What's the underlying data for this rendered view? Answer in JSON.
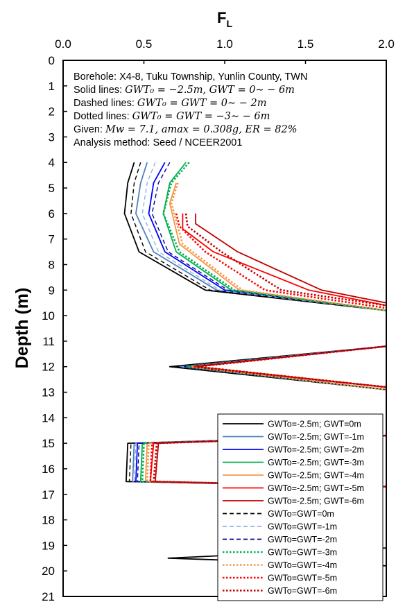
{
  "chart_data": {
    "type": "line",
    "title": "",
    "xlabel": "F",
    "xlabel_subscript": "L",
    "ylabel": "Depth (m)",
    "xlim": [
      0.0,
      2.0
    ],
    "ylim": [
      0,
      21
    ],
    "y_inverted": true,
    "x_axis_position": "top",
    "x_ticks": [
      "0.0",
      "0.5",
      "1.0",
      "1.5",
      "2.0"
    ],
    "y_ticks": [
      "0",
      "1",
      "2",
      "3",
      "4",
      "5",
      "6",
      "7",
      "8",
      "9",
      "10",
      "11",
      "12",
      "13",
      "14",
      "15",
      "16",
      "17",
      "18",
      "19",
      "20",
      "21"
    ],
    "grid": false,
    "legend_position": "bottom-right",
    "annotation_lines": [
      {
        "parts": [
          {
            "text": "Borehole: X4-8, Tuku Township, Yunlin County, TWN",
            "math": false
          }
        ]
      },
      {
        "parts": [
          {
            "text": "Solid lines: ",
            "math": false
          },
          {
            "text": "GWT₀ = −2.5m, GWT = 0∼ − 6m",
            "math": true
          }
        ]
      },
      {
        "parts": [
          {
            "text": "Dashed lines: ",
            "math": false
          },
          {
            "text": "GWT₀ = GWT = 0∼ − 2m",
            "math": true
          }
        ]
      },
      {
        "parts": [
          {
            "text": "Dotted lines: ",
            "math": false
          },
          {
            "text": "GWT₀ = GWT = −3∼ − 6m",
            "math": true
          }
        ]
      },
      {
        "parts": [
          {
            "text": "Given: ",
            "math": false
          },
          {
            "text": "Mw = 7.1, amax = 0.308g, ER = 82%",
            "math": true
          }
        ]
      },
      {
        "parts": [
          {
            "text": "Analysis method: Seed / NCEER2001",
            "math": false
          }
        ]
      }
    ],
    "series": [
      {
        "name": "GWTo=-2.5m; GWT=0m",
        "color": "#000000",
        "style": "solid",
        "x": [
          0.44,
          0.4,
          0.38,
          0.47,
          0.88,
          2.0,
          null,
          2.0,
          0.66,
          2.0,
          null,
          2.0,
          0.4,
          0.39,
          2.0,
          null,
          2.0,
          0.65,
          2.0
        ],
        "y": [
          4,
          4.8,
          6,
          7.5,
          9,
          9.8,
          null,
          11.2,
          12,
          12.9,
          null,
          14.7,
          15,
          16.5,
          16.7,
          null,
          19.1,
          19.5,
          19.8
        ]
      },
      {
        "name": "GWTo=-2.5m; GWT=-1m",
        "color": "#4F81BD",
        "style": "solid",
        "x": [
          0.52,
          0.48,
          0.45,
          0.56,
          0.95,
          2.0,
          null,
          2.0,
          0.72,
          2.0,
          null,
          2.0,
          0.44,
          0.43,
          2.0
        ],
        "y": [
          4,
          4.8,
          6,
          7.5,
          9,
          9.8,
          null,
          11.2,
          12,
          12.9,
          null,
          14.7,
          15,
          16.5,
          16.7
        ]
      },
      {
        "name": "GWTo=-2.5m; GWT=-2m",
        "color": "#0000FF",
        "style": "solid",
        "x": [
          0.63,
          0.56,
          0.53,
          0.63,
          1.0,
          2.0,
          null,
          2.0,
          0.74,
          2.0,
          null,
          2.0,
          0.46,
          0.45,
          2.0
        ],
        "y": [
          4,
          4.8,
          6,
          7.5,
          9,
          9.8,
          null,
          11.2,
          12,
          12.9,
          null,
          14.7,
          15,
          16.5,
          16.7
        ]
      },
      {
        "name": "GWTo=-2.5m; GWT=-3m",
        "color": "#00B050",
        "style": "solid",
        "x": [
          0.76,
          0.66,
          0.62,
          0.7,
          1.04,
          2.0,
          null,
          2.0,
          0.76,
          2.0,
          null,
          2.0,
          0.49,
          0.48,
          2.0
        ],
        "y": [
          4,
          4.8,
          6,
          7.5,
          9,
          9.8,
          null,
          11.2,
          12,
          12.9,
          null,
          14.7,
          15,
          16.5,
          16.7
        ]
      },
      {
        "name": "GWTo=-2.5m; GWT=-4m",
        "color": "#F79646",
        "style": "solid",
        "x": [
          0.7,
          0.66,
          0.72,
          1.09,
          2.0,
          null,
          2.0,
          0.78,
          2.0,
          null,
          2.0,
          0.52,
          0.51,
          2.0
        ],
        "y": [
          4.8,
          5.6,
          7.2,
          9,
          9.8,
          null,
          11.2,
          12,
          12.9,
          null,
          14.7,
          15,
          16.5,
          16.7
        ]
      },
      {
        "name": "GWTo=-2.5m; GWT=-5m",
        "color": "#FF0000",
        "style": "solid",
        "x": [
          0.74,
          0.74,
          0.93,
          1.52,
          2.0,
          null,
          2.0,
          0.8,
          2.0,
          null,
          2.0,
          0.56,
          0.54,
          2.0
        ],
        "y": [
          6,
          6.6,
          7.5,
          9,
          9.6,
          null,
          11.2,
          12,
          12.8,
          null,
          14.7,
          15,
          16.5,
          16.7
        ]
      },
      {
        "name": "GWTo=-2.5m; GWT=-6m",
        "color": "#C00000",
        "style": "solid",
        "x": [
          0.82,
          0.82,
          1.08,
          1.6,
          2.0,
          null,
          2.0,
          0.82,
          2.0,
          null,
          2.0,
          0.59,
          0.57,
          2.0
        ],
        "y": [
          6,
          6.4,
          7.5,
          9,
          9.5,
          null,
          11.2,
          12,
          12.8,
          null,
          14.7,
          15,
          16.5,
          16.7
        ]
      },
      {
        "name": "GWTo=GWT=0m",
        "color": "#000000",
        "style": "dashed",
        "x": [
          0.48,
          0.44,
          0.42,
          0.51,
          0.91,
          2.0,
          null,
          2.0,
          0.69,
          2.0,
          null,
          2.0,
          0.42,
          0.41,
          2.0
        ],
        "y": [
          4,
          4.8,
          6,
          7.5,
          9,
          9.8,
          null,
          11.2,
          12,
          12.9,
          null,
          14.7,
          15,
          16.5,
          16.7
        ]
      },
      {
        "name": "GWTo=GWT=-1m",
        "color": "#8DB4E2",
        "style": "dashed",
        "x": [
          0.57,
          0.52,
          0.49,
          0.59,
          0.97,
          2.0,
          null,
          2.0,
          0.73,
          2.0,
          null,
          2.0,
          0.45,
          0.44,
          2.0
        ],
        "y": [
          4,
          4.8,
          6,
          7.5,
          9,
          9.8,
          null,
          11.2,
          12,
          12.9,
          null,
          14.7,
          15,
          16.5,
          16.7
        ]
      },
      {
        "name": "GWTo=GWT=-2m",
        "color": "#00008B",
        "style": "dashed",
        "x": [
          0.66,
          0.59,
          0.55,
          0.65,
          1.02,
          2.0,
          null,
          2.0,
          0.75,
          2.0,
          null,
          2.0,
          0.47,
          0.46,
          2.0
        ],
        "y": [
          4,
          4.8,
          6,
          7.5,
          9,
          9.8,
          null,
          11.2,
          12,
          12.9,
          null,
          14.7,
          15,
          16.5,
          16.7
        ]
      },
      {
        "name": "GWTo=GWT=-3m",
        "color": "#00B050",
        "style": "dotted",
        "x": [
          0.78,
          0.67,
          0.62,
          0.72,
          1.06,
          2.0,
          null,
          2.0,
          0.77,
          2.0,
          null,
          2.0,
          0.5,
          0.49,
          2.0
        ],
        "y": [
          4,
          4.8,
          6,
          7.5,
          9,
          9.8,
          null,
          11.2,
          12,
          12.9,
          null,
          14.7,
          15,
          16.5,
          16.7
        ]
      },
      {
        "name": "GWTo=GWT=-4m",
        "color": "#F79646",
        "style": "dotted",
        "x": [
          0.71,
          0.67,
          0.74,
          1.11,
          2.0,
          null,
          2.0,
          0.79,
          2.0,
          null,
          2.0,
          0.53,
          0.52,
          2.0
        ],
        "y": [
          4.8,
          5.6,
          7.2,
          9,
          9.8,
          null,
          11.2,
          12,
          12.9,
          null,
          14.7,
          15,
          16.5,
          16.7
        ]
      },
      {
        "name": "GWTo=GWT=-5m",
        "color": "#FF0000",
        "style": "dotted",
        "x": [
          0.7,
          0.72,
          0.88,
          1.25,
          2.0,
          null,
          2.0,
          0.81,
          2.0,
          null,
          2.0,
          0.55,
          0.54,
          2.0
        ],
        "y": [
          6,
          6.5,
          7.5,
          9,
          9.7,
          null,
          11.2,
          12,
          12.8,
          null,
          14.7,
          15,
          16.5,
          16.7
        ]
      },
      {
        "name": "GWTo=GWT=-6m",
        "color": "#C00000",
        "style": "dotted",
        "x": [
          0.76,
          0.77,
          0.98,
          1.35,
          2.0,
          null,
          2.0,
          0.83,
          2.0,
          null,
          2.0,
          0.58,
          0.56,
          2.0
        ],
        "y": [
          6,
          6.5,
          7.5,
          9,
          9.6,
          null,
          11.2,
          12,
          12.8,
          null,
          14.7,
          15,
          16.5,
          16.7
        ]
      }
    ]
  }
}
